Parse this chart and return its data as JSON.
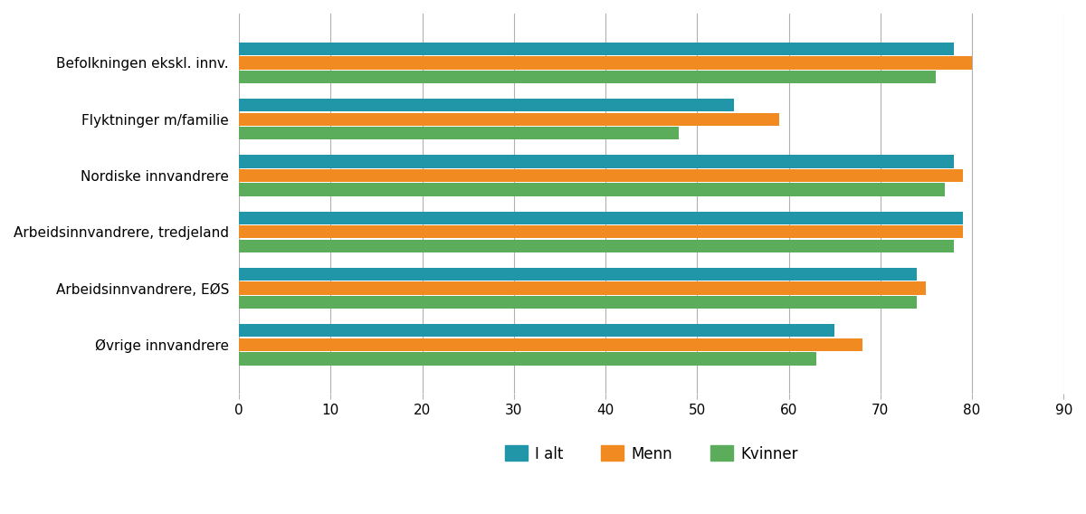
{
  "categories": [
    "Befolkningen ekskl. innv.",
    "Flyktninger m/familie",
    "Nordiske innvandrere",
    "Arbeidsinnvandrere, tredjeland",
    "Arbeidsinnvandrere, EØS",
    "Øvrige innvandrere"
  ],
  "series": {
    "I alt": [
      78,
      54,
      78,
      79,
      74,
      65
    ],
    "Menn": [
      80,
      59,
      79,
      79,
      75,
      68
    ],
    "Kvinner": [
      76,
      48,
      77,
      78,
      74,
      63
    ]
  },
  "colors": {
    "I alt": "#2196A8",
    "Menn": "#F28A22",
    "Kvinner": "#5BAD5B"
  },
  "legend_labels": [
    "I alt",
    "Menn",
    "Kvinner"
  ],
  "xlim": [
    0,
    90
  ],
  "xticks": [
    0,
    10,
    20,
    30,
    40,
    50,
    60,
    70,
    80,
    90
  ],
  "background_color": "#ffffff",
  "grid_color": "#b0b0b0",
  "bar_height": 0.25,
  "figsize": [
    12.0,
    5.68
  ],
  "dpi": 100
}
